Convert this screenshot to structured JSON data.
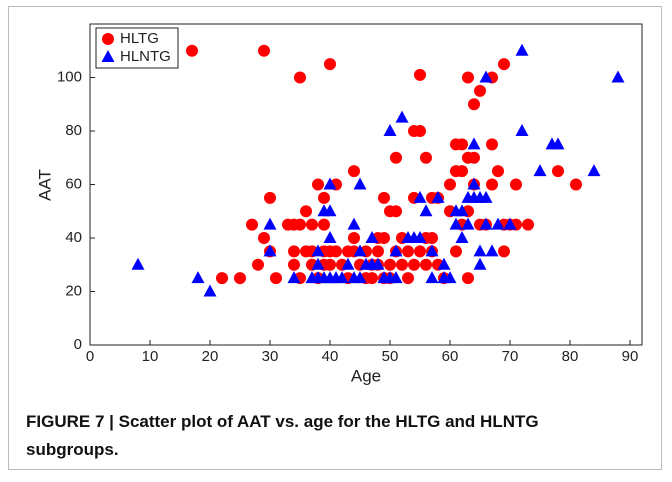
{
  "chart_data": {
    "type": "scatter",
    "xlabel": "Age",
    "ylabel": "AAT",
    "caption": "FIGURE 7 | Scatter plot of AAT vs. age for the HLTG and HLNTG subgroups.",
    "xlim": [
      0,
      92
    ],
    "xticks": [
      0,
      10,
      20,
      30,
      40,
      50,
      60,
      70,
      80,
      90
    ],
    "ylim": [
      0,
      120
    ],
    "yticks": [
      0,
      20,
      40,
      60,
      80,
      100
    ],
    "legend": "upper left",
    "series": [
      {
        "name": "HLTG",
        "color": "#ff0000",
        "marker": "circle",
        "x": [
          17,
          29,
          35,
          40,
          55,
          63,
          69,
          67,
          65,
          64,
          62,
          64,
          67,
          61,
          63,
          56,
          51,
          54,
          55,
          44,
          30,
          39,
          49,
          50,
          51,
          58,
          60,
          57,
          54,
          61,
          62,
          64,
          67,
          68,
          78,
          81,
          71,
          27,
          29,
          33,
          34,
          35,
          36,
          37,
          38,
          39,
          41,
          44,
          48,
          49,
          52,
          56,
          60,
          63,
          62,
          66,
          69,
          70,
          71,
          73,
          69,
          22,
          25,
          28,
          30,
          31,
          34,
          35,
          36,
          37,
          38,
          39,
          40,
          41,
          42,
          43,
          43,
          45,
          46,
          47,
          47,
          48,
          49,
          50,
          50,
          51,
          52,
          53,
          54,
          55,
          56,
          57,
          58,
          59,
          61,
          63,
          65,
          34,
          37,
          44,
          53,
          57,
          40,
          46,
          39,
          48
        ],
        "values": [
          110,
          110,
          100,
          105,
          101,
          100,
          105,
          100,
          95,
          90,
          75,
          70,
          75,
          75,
          70,
          70,
          70,
          80,
          80,
          65,
          55,
          55,
          55,
          50,
          50,
          55,
          60,
          55,
          55,
          65,
          65,
          60,
          60,
          65,
          65,
          60,
          60,
          45,
          40,
          45,
          45,
          45,
          50,
          45,
          60,
          45,
          60,
          40,
          40,
          40,
          40,
          40,
          50,
          50,
          45,
          45,
          45,
          45,
          45,
          45,
          35,
          25,
          25,
          30,
          35,
          25,
          30,
          25,
          35,
          30,
          25,
          30,
          35,
          35,
          30,
          25,
          35,
          30,
          35,
          25,
          30,
          35,
          25,
          25,
          30,
          35,
          30,
          25,
          30,
          35,
          30,
          35,
          30,
          25,
          35,
          25,
          45,
          35,
          35,
          35,
          35,
          40,
          30,
          25,
          35,
          30
        ]
      },
      {
        "name": "HLNTG",
        "color": "#0000ff",
        "marker": "triangle",
        "x": [
          8,
          18,
          20,
          30,
          30,
          34,
          37,
          38,
          38,
          38,
          39,
          40,
          40,
          40,
          39,
          40,
          41,
          42,
          43,
          44,
          44,
          45,
          45,
          45,
          46,
          47,
          47,
          48,
          49,
          50,
          50,
          51,
          51,
          52,
          53,
          54,
          55,
          55,
          56,
          57,
          58,
          59,
          60,
          61,
          61,
          62,
          63,
          63,
          64,
          64,
          64,
          65,
          65,
          65,
          66,
          66,
          66,
          67,
          68,
          70,
          72,
          72,
          75,
          77,
          78,
          84,
          88,
          62,
          57,
          59
        ],
        "values": [
          30,
          25,
          20,
          45,
          35,
          25,
          25,
          25,
          30,
          35,
          25,
          25,
          60,
          50,
          50,
          40,
          25,
          25,
          30,
          25,
          45,
          60,
          35,
          25,
          30,
          40,
          30,
          30,
          25,
          80,
          25,
          35,
          25,
          85,
          40,
          40,
          40,
          55,
          50,
          25,
          55,
          25,
          25,
          45,
          50,
          50,
          45,
          55,
          55,
          75,
          60,
          55,
          30,
          35,
          100,
          45,
          55,
          35,
          45,
          45,
          110,
          80,
          65,
          75,
          75,
          65,
          100,
          40,
          35,
          30
        ]
      }
    ]
  }
}
